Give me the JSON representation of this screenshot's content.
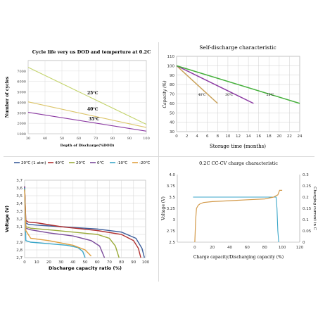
{
  "chart_data": [
    {
      "type": "line",
      "title": "Cycle life very us DOD and temperture  at 0.2C",
      "xlabel": "Depth of Discharge(%DOD)",
      "ylabel": "Number of cycles",
      "xlim": [
        30,
        100
      ],
      "ylim": [
        1000,
        8000
      ],
      "xticks": [
        "30",
        "40",
        "50",
        "60",
        "70",
        "80",
        "90",
        "100"
      ],
      "yticks": [
        "1000",
        "2000",
        "3000",
        "4000",
        "5000",
        "6000",
        "7000"
      ],
      "grid": true,
      "series": [
        {
          "name": "25℃",
          "color": "#c3d36a",
          "x": [
            30,
            100
          ],
          "y": [
            7350,
            1900
          ]
        },
        {
          "name": "40℃",
          "color": "#dcc56a",
          "x": [
            30,
            100
          ],
          "y": [
            4050,
            1600
          ]
        },
        {
          "name": "35℃",
          "color": "#8b39a2",
          "x": [
            30,
            100
          ],
          "y": [
            3050,
            1250
          ]
        }
      ]
    },
    {
      "type": "line",
      "title": "Self-discharge characteristic",
      "xlabel": "Storage time (months)",
      "ylabel": "Capacity (%)",
      "xlim": [
        0,
        24
      ],
      "ylim": [
        30,
        110
      ],
      "xticks": [
        "0",
        "2",
        "4",
        "6",
        "8",
        "10",
        "12",
        "14",
        "16",
        "18",
        "20",
        "22",
        "24"
      ],
      "yticks": [
        "30",
        "40",
        "50",
        "60",
        "70",
        "80",
        "90",
        "100",
        "110"
      ],
      "grid": true,
      "series": [
        {
          "name": "40℃",
          "color": "#c8a058",
          "x": [
            0,
            8
          ],
          "y": [
            100,
            60
          ]
        },
        {
          "name": "30℃",
          "color": "#8b39a2",
          "x": [
            0,
            15
          ],
          "y": [
            100,
            60
          ]
        },
        {
          "name": "25℃",
          "color": "#46b03c",
          "x": [
            0,
            24
          ],
          "y": [
            100,
            60
          ]
        }
      ]
    },
    {
      "type": "line",
      "xlabel": "Discharge capacity ratio (%)",
      "ylabel": "Voltage (V)",
      "xlim": [
        0,
        100
      ],
      "ylim": [
        2.7,
        3.7
      ],
      "xticks": [
        "0",
        "10",
        "20",
        "30",
        "40",
        "50",
        "60",
        "70",
        "80",
        "90",
        "100"
      ],
      "yticks": [
        "2,7",
        "2,8",
        "2,9",
        "3",
        "3,1",
        "3,2",
        "3,3",
        "3,4",
        "3,5",
        "3,6",
        "3,7"
      ],
      "grid": true,
      "legend": "top",
      "series": [
        {
          "name": "20℃ (1 atm)",
          "color": "#3a5c9a",
          "x": [
            0,
            1,
            3,
            10,
            30,
            60,
            80,
            92,
            97,
            99
          ],
          "y": [
            3.62,
            3.15,
            3.13,
            3.12,
            3.1,
            3.07,
            3.03,
            2.95,
            2.82,
            2.7
          ]
        },
        {
          "name": "40℃",
          "color": "#b03030",
          "x": [
            0,
            1,
            3,
            10,
            30,
            60,
            80,
            90,
            94,
            96
          ],
          "y": [
            3.62,
            3.18,
            3.16,
            3.15,
            3.1,
            3.05,
            3.0,
            2.92,
            2.82,
            2.7
          ]
        },
        {
          "name": "20℃",
          "color": "#9aaa38",
          "x": [
            0,
            1,
            5,
            20,
            40,
            60,
            70,
            75,
            78
          ],
          "y": [
            3.6,
            3.1,
            3.08,
            3.06,
            3.03,
            3.0,
            2.95,
            2.85,
            2.7
          ]
        },
        {
          "name": "0℃",
          "color": "#7a4a9a",
          "x": [
            0,
            1,
            5,
            20,
            40,
            55,
            62,
            66
          ],
          "y": [
            3.62,
            3.08,
            3.06,
            3.02,
            2.98,
            2.92,
            2.85,
            2.7
          ]
        },
        {
          "name": "-10℃",
          "color": "#3aa6c8",
          "x": [
            0,
            1,
            5,
            20,
            35,
            44,
            48,
            50
          ],
          "y": [
            3.6,
            2.92,
            2.9,
            2.88,
            2.86,
            2.83,
            2.78,
            2.7
          ]
        },
        {
          "name": "-20℃",
          "color": "#e0a040",
          "x": [
            0,
            1,
            5,
            20,
            40,
            50,
            55
          ],
          "y": [
            3.58,
            3.05,
            2.95,
            2.92,
            2.86,
            2.8,
            2.72
          ]
        }
      ]
    },
    {
      "type": "line",
      "title": "0.2C  CC-CV charge characteristic",
      "xlabel": "Charge capacity/Discharging capacity (%)",
      "ylabel": "Voltage (V)",
      "ylabel_right": "Charging current in C",
      "xlim": [
        -20,
        120
      ],
      "ylim": [
        2.5,
        4.0
      ],
      "ylim_right": [
        0,
        0.3
      ],
      "xticks": [
        "0",
        "20",
        "40",
        "60",
        "80",
        "100",
        "120"
      ],
      "yticks": [
        "2.5",
        "2.75",
        "3",
        "3.25",
        "3.5",
        "3.75",
        "4.0"
      ],
      "yticks_right": [
        "0",
        "0.05",
        "0.1",
        "0.15",
        "0.2",
        "0.25",
        "0.3"
      ],
      "grid": false,
      "series": [
        {
          "name": "Voltage",
          "color": "#d39a4a",
          "x": [
            0,
            1,
            2,
            4,
            6,
            10,
            20,
            40,
            60,
            80,
            90,
            95,
            97,
            100
          ],
          "y": [
            2.5,
            3.0,
            3.25,
            3.32,
            3.35,
            3.38,
            3.4,
            3.42,
            3.44,
            3.46,
            3.5,
            3.55,
            3.65,
            3.65
          ]
        },
        {
          "name": "Charging current",
          "color": "#3aa6c8",
          "x": [
            -2,
            0,
            90,
            93,
            94,
            95,
            96
          ],
          "y": [
            0.2,
            0.2,
            0.2,
            0.2,
            0.15,
            0.05,
            0
          ]
        }
      ]
    }
  ],
  "labels": {
    "c1_25": "25℃",
    "c1_40": "40℃",
    "c1_35": "35℃",
    "c2_40": "40℃",
    "c2_30": "30℃",
    "c2_25": "25℃"
  }
}
